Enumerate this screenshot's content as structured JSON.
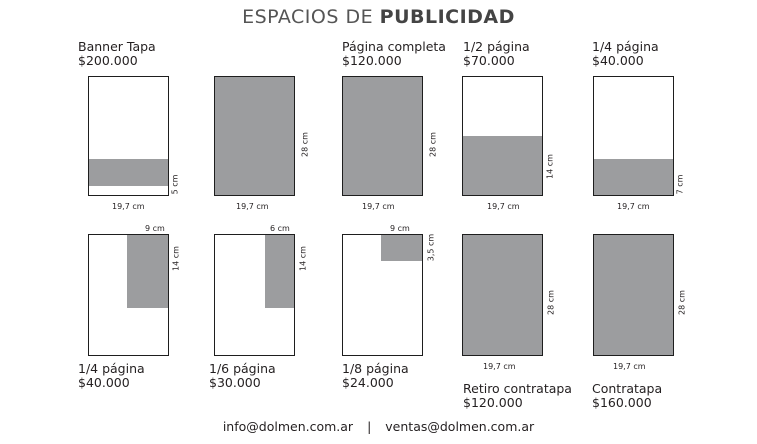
{
  "title": {
    "light": "ESPACIOS DE ",
    "bold": "PUBLICIDAD"
  },
  "ads": [
    {
      "name": "Banner Tapa",
      "price": "$200.000",
      "width_label": "19,7 cm",
      "height_label": "5 cm"
    },
    {
      "name": "",
      "price": "",
      "width_label": "19,7 cm",
      "height_label": "28 cm"
    },
    {
      "name": "Página completa",
      "price": "$120.000",
      "width_label": "19,7 cm",
      "height_label": "28 cm"
    },
    {
      "name": "1/2 página",
      "price": "$70.000",
      "width_label": "19,7 cm",
      "height_label": "14 cm"
    },
    {
      "name": "1/4 página",
      "price": "$40.000",
      "width_label": "19,7 cm",
      "height_label": "7 cm"
    },
    {
      "name": "1/4 página",
      "price": "$40.000",
      "width_label": "9 cm",
      "height_label": "14 cm"
    },
    {
      "name": "1/6 página",
      "price": "$30.000",
      "width_label": "6 cm",
      "height_label": "14 cm"
    },
    {
      "name": "1/8 página",
      "price": "$24.000",
      "width_label": "9 cm",
      "height_label": "3,5 cm"
    },
    {
      "name": "Retiro contratapa",
      "price": "$120.000",
      "width_label": "19,7 cm",
      "height_label": "28 cm"
    },
    {
      "name": "Contratapa",
      "price": "$160.000",
      "width_label": "19,7 cm",
      "height_label": "28 cm"
    }
  ],
  "footer": {
    "email1": "info@dolmen.com.ar",
    "separator": "|",
    "email2": "ventas@dolmen.com.ar"
  },
  "colors": {
    "ad_fill": "#9c9d9f",
    "border": "#1e1e1e",
    "text": "#231f20"
  }
}
